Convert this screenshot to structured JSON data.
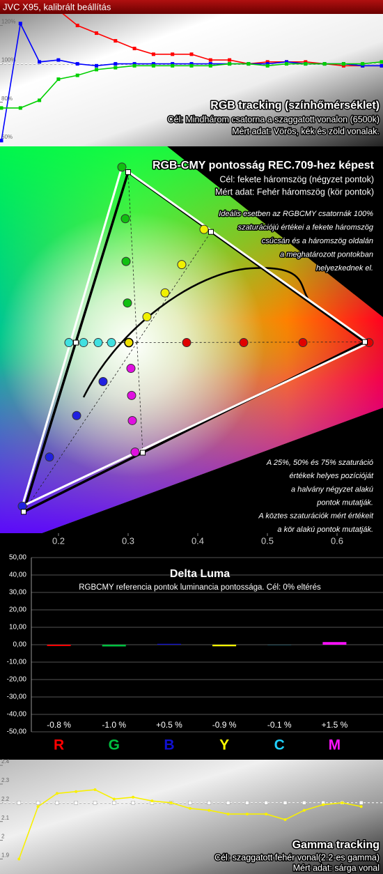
{
  "header": {
    "title": "JVC X95, kalibrált beállítás"
  },
  "chart_data": [
    {
      "type": "line",
      "title": "RGB tracking (színhőmérséklet)",
      "annotations": [
        "Cél: Mindhárom csatorna a szaggatott vonalon (6500k)",
        "Mért adat: Vörös, kék és zöld vonalak."
      ],
      "categories": [
        null,
        null,
        null,
        null,
        null,
        null,
        null,
        null,
        null,
        null,
        null,
        null,
        null,
        null,
        null,
        null,
        null,
        null,
        null,
        null,
        null
      ],
      "series": [
        {
          "color": "#ff0000",
          "values": [
            null,
            null,
            null,
            128,
            120,
            116,
            112,
            108,
            105,
            105,
            105,
            102,
            102,
            100,
            101,
            101,
            101,
            100,
            99,
            99,
            99
          ]
        },
        {
          "color": "#0000ff",
          "values": [
            60,
            121,
            101,
            102,
            100,
            99,
            100,
            100,
            100,
            100,
            100,
            100,
            100,
            100,
            100,
            101,
            100,
            100,
            100,
            99,
            99
          ]
        },
        {
          "color": "#00d000",
          "values": [
            77,
            77,
            81,
            92,
            94,
            97,
            98,
            99,
            99,
            99,
            99,
            99,
            100,
            100,
            99,
            100,
            100,
            100,
            100,
            100,
            101
          ]
        }
      ],
      "target": 100,
      "marker": "square",
      "ylim": [
        57,
        126
      ],
      "yticks": [
        {
          "value": 120,
          "label": "120%"
        },
        {
          "value": 100,
          "label": "100%"
        },
        {
          "value": 80,
          "label": "80%"
        },
        {
          "value": 60,
          "label": "60%"
        }
      ]
    },
    {
      "type": "chromaticity",
      "title": "RGB-CMY pontosság REC.709-hez képest",
      "annotations": [
        "Cél: fekete háromszög (négyzet pontok)",
        "Mért adat: Fehér háromszög (kör pontok)"
      ],
      "notes_top": [
        "Ideális esetben az RGBCMY csatornák 100%",
        "szaturációjú értékei a fekete háromszög",
        "csúcsán  és a háromszög oldalán",
        "a meghatározott pontokban",
        "helyezkednek el."
      ],
      "notes_bottom": [
        "A 25%, 50% és 75% szaturáció",
        "értékek helyes pozícióját",
        "a halvány négyzet alakú",
        "pontok mutatják.",
        "A köztes szaturációk mért értékeit",
        "a kör alakú pontok mutatják."
      ],
      "xlim": [
        0.116,
        0.666
      ],
      "ylim": [
        0.026,
        0.641
      ],
      "xticks": [
        0.2,
        0.3,
        0.4,
        0.5,
        0.6
      ],
      "target_white": [
        0.3127,
        0.329
      ],
      "white_measured": [
        0.301,
        0.329
      ],
      "white_color": "#f0e000",
      "series": [
        {
          "color": "#e00000",
          "x": [
            0.384,
            0.466,
            0.551,
            0.646
          ],
          "y": [
            0.329,
            0.329,
            0.329,
            0.329
          ],
          "target": [
            0.64,
            0.33
          ]
        },
        {
          "color": "#10c010",
          "x": [
            0.299,
            0.297,
            0.296,
            0.291
          ],
          "y": [
            0.392,
            0.458,
            0.526,
            0.608
          ],
          "target": [
            0.3,
            0.6
          ]
        },
        {
          "color": "#2020e0",
          "x": [
            0.264,
            0.226,
            0.187,
            0.148
          ],
          "y": [
            0.267,
            0.213,
            0.147,
            0.069
          ],
          "target": [
            0.15,
            0.06
          ]
        },
        {
          "color": "#f0f000",
          "x": [
            0.327,
            0.353,
            0.377,
            0.409
          ],
          "y": [
            0.37,
            0.408,
            0.453,
            0.509
          ],
          "target": [
            0.419,
            0.505
          ]
        },
        {
          "color": "#40e0e0",
          "x": [
            0.276,
            0.257,
            0.236,
            0.215
          ],
          "y": [
            0.329,
            0.329,
            0.329,
            0.329
          ],
          "target": [
            0.225,
            0.329
          ]
        },
        {
          "color": "#e010e0",
          "x": [
            0.304,
            0.305,
            0.306,
            0.31
          ],
          "y": [
            0.288,
            0.245,
            0.205,
            0.155
          ],
          "target": [
            0.321,
            0.154
          ]
        }
      ]
    },
    {
      "type": "bar",
      "title": "Delta Luma",
      "subtitle": "RGBCMY referencia pontok luminancia pontossága. Cél: 0% eltérés",
      "categories": [
        "R",
        "G",
        "B",
        "Y",
        "C",
        "M"
      ],
      "values": [
        -0.8,
        -1.0,
        0.5,
        -0.9,
        -0.1,
        1.5
      ],
      "value_labels": [
        "-0.8 %",
        "-1.0 %",
        "+0.5 %",
        "-0.9 %",
        "-0.1 %",
        "+1.5 %"
      ],
      "colors": [
        "#ff0000",
        "#00c040",
        "#1010d0",
        "#ffff00",
        "#20d0ff",
        "#ff10ff"
      ],
      "ylim": [
        -50,
        50
      ],
      "grid": true,
      "yticks": [
        {
          "value": 50,
          "label": "50,00"
        },
        {
          "value": 40,
          "label": "40,00"
        },
        {
          "value": 30,
          "label": "30,00"
        },
        {
          "value": 20,
          "label": "20,00"
        },
        {
          "value": 10,
          "label": "10,00"
        },
        {
          "value": 0,
          "label": "0,00"
        },
        {
          "value": -10,
          "label": "-10,00"
        },
        {
          "value": -20,
          "label": "-20,00"
        },
        {
          "value": -30,
          "label": "-30,00"
        },
        {
          "value": -40,
          "label": "-40,00"
        },
        {
          "value": -50,
          "label": "-50,00"
        }
      ]
    },
    {
      "type": "line",
      "title": "Gamma tracking",
      "annotations": [
        "Cél: szaggatott fehér vonal(2.2-es gamma)",
        "Mért adat: sárga vonal"
      ],
      "categories": [
        null,
        null,
        null,
        null,
        null,
        null,
        null,
        null,
        null,
        null,
        null,
        null,
        null,
        null,
        null,
        null,
        null,
        null,
        null
      ],
      "series": [
        {
          "color": "#f8f000",
          "values": [
            1.9,
            2.18,
            2.25,
            2.26,
            2.27,
            2.22,
            2.23,
            2.21,
            2.2,
            2.17,
            2.16,
            2.14,
            2.14,
            2.14,
            2.11,
            2.16,
            2.19,
            2.2,
            2.18
          ]
        }
      ],
      "target": 2.2,
      "target_markers": true,
      "marker": "circle",
      "ylim": [
        1.82,
        2.43
      ],
      "yticks": [
        2.4,
        2.3,
        2.2,
        2.1,
        2,
        1.9
      ]
    }
  ]
}
